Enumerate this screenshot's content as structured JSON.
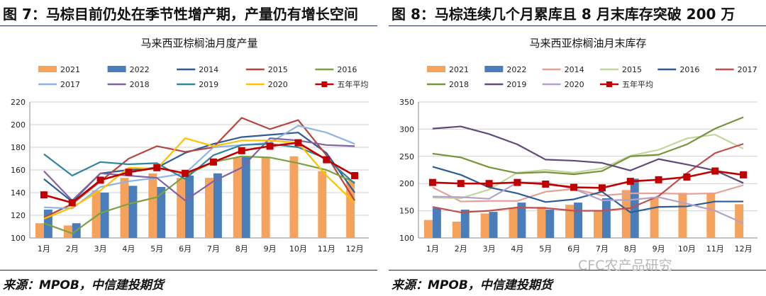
{
  "figures": [
    {
      "caption": "图 7：马棕目前仍处在季节性增产期，产量仍有增长空间",
      "source": "来源：MPOB，中信建投期货"
    },
    {
      "caption": "图 8：马棕连续几个月累库且 8 月末库存突破 200 万",
      "source": "来源：MPOB，中信建投期货"
    }
  ],
  "watermark": "CFC农产品研究",
  "chart_data": [
    {
      "type": "bar",
      "title": "马来西亚棕榈油月度产量",
      "categories": [
        "1月",
        "2月",
        "3月",
        "4月",
        "5月",
        "6月",
        "7月",
        "8月",
        "9月",
        "10月",
        "11月",
        "12月"
      ],
      "ylim": [
        100,
        220
      ],
      "yticks": [
        100,
        120,
        140,
        160,
        180,
        200,
        220
      ],
      "legend_columns": 5,
      "series": [
        {
          "name": "2021",
          "kind": "bar",
          "color": "#f5a25d",
          "values": [
            113,
            111,
            142,
            153,
            157,
            153,
            153,
            171,
            171,
            172,
            159,
            150
          ]
        },
        {
          "name": "2022",
          "kind": "bar",
          "color": "#4a7ebb",
          "values": [
            125,
            113,
            140,
            146,
            145,
            155,
            157,
            172,
            null,
            null,
            null,
            null
          ]
        },
        {
          "name": "2014",
          "kind": "line",
          "color": "#2e5d96",
          "values": [
            152,
            132,
            157,
            160,
            162,
            175,
            183,
            189,
            191,
            193,
            175,
            140
          ]
        },
        {
          "name": "2015",
          "kind": "line",
          "color": "#b5453f",
          "values": [
            118,
            130,
            150,
            170,
            181,
            176,
            180,
            206,
            196,
            204,
            173,
            133
          ]
        },
        {
          "name": "2016",
          "kind": "line",
          "color": "#7ba23f",
          "values": [
            113,
            104,
            122,
            130,
            136,
            155,
            167,
            172,
            171,
            166,
            160,
            149
          ]
        },
        {
          "name": "2017",
          "kind": "line",
          "color": "#8db4e2",
          "values": [
            127,
            126,
            145,
            150,
            153,
            157,
            180,
            182,
            184,
            199,
            193,
            183
          ]
        },
        {
          "name": "2018",
          "kind": "line",
          "color": "#8064a2",
          "values": [
            159,
            133,
            157,
            155,
            153,
            133,
            150,
            162,
            188,
            186,
            182,
            181
          ]
        },
        {
          "name": "2019",
          "kind": "line",
          "color": "#31859c",
          "values": [
            174,
            155,
            167,
            165,
            166,
            152,
            173,
            182,
            183,
            180,
            170,
            148
          ]
        },
        {
          "name": "2020",
          "kind": "line",
          "color": "#ffc000",
          "values": [
            117,
            127,
            142,
            162,
            161,
            188,
            181,
            186,
            186,
            184,
            155,
            131
          ]
        },
        {
          "name": "五年平均",
          "kind": "marker",
          "color": "#c00000",
          "values": [
            138,
            131,
            151,
            158,
            162,
            157,
            167,
            177,
            181,
            184,
            169,
            155
          ]
        }
      ]
    },
    {
      "type": "bar",
      "title": "马来西亚棕榈油月末库存",
      "categories": [
        "1月",
        "2月",
        "3月",
        "4月",
        "5月",
        "6月",
        "7月",
        "8月",
        "9月",
        "10月",
        "11月",
        "12月"
      ],
      "ylim": [
        100,
        350
      ],
      "yticks": [
        100,
        150,
        200,
        250,
        300,
        350
      ],
      "legend_columns": 6,
      "series": [
        {
          "name": "2021",
          "kind": "bar",
          "color": "#f5a25d",
          "values": [
            133,
            130,
            145,
            155,
            157,
            161,
            150,
            188,
            175,
            183,
            181,
            162
          ]
        },
        {
          "name": "2022",
          "kind": "bar",
          "color": "#4a7ebb",
          "values": [
            155,
            152,
            148,
            165,
            152,
            165,
            173,
            209,
            null,
            null,
            null,
            null
          ]
        },
        {
          "name": "2014",
          "kind": "line",
          "color": "#e6a09a",
          "values": [
            193,
            167,
            168,
            168,
            185,
            190,
            178,
            182,
            182,
            181,
            182,
            197
          ]
        },
        {
          "name": "2015",
          "kind": "line",
          "color": "#c3d69b",
          "values": [
            174,
            173,
            189,
            220,
            225,
            220,
            228,
            251,
            262,
            283,
            290,
            264
          ]
        },
        {
          "name": "2016",
          "kind": "line",
          "color": "#2e5d96",
          "values": [
            231,
            216,
            193,
            182,
            166,
            171,
            185,
            147,
            157,
            158,
            167,
            167
          ]
        },
        {
          "name": "2017",
          "kind": "line",
          "color": "#c0504d",
          "values": [
            157,
            147,
            150,
            156,
            155,
            150,
            150,
            155,
            177,
            219,
            256,
            273
          ]
        },
        {
          "name": "2018",
          "kind": "line",
          "color": "#77933c",
          "values": [
            255,
            248,
            230,
            219,
            221,
            217,
            223,
            250,
            253,
            272,
            301,
            322
          ]
        },
        {
          "name": "2019",
          "kind": "line",
          "color": "#604a7b",
          "values": [
            301,
            305,
            291,
            272,
            244,
            242,
            238,
            224,
            245,
            235,
            224,
            201
          ]
        },
        {
          "name": "2020",
          "kind": "line",
          "color": "#b3a2c7",
          "values": [
            176,
            175,
            172,
            202,
            202,
            190,
            169,
            170,
            175,
            163,
            150,
            127
          ]
        },
        {
          "name": "五年平均",
          "kind": "marker",
          "color": "#c00000",
          "values": [
            202,
            200,
            200,
            202,
            199,
            193,
            192,
            204,
            207,
            212,
            223,
            216
          ]
        }
      ]
    }
  ]
}
